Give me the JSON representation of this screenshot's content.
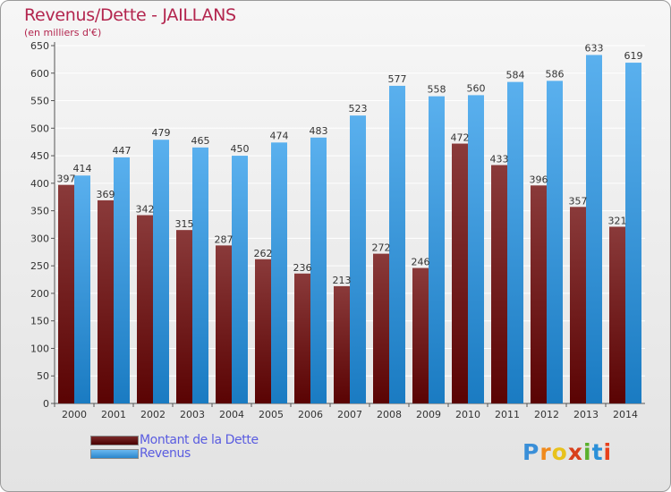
{
  "header": {
    "title": "Revenus/Dette - JAILLANS",
    "subtitle": "(en milliers d'€)"
  },
  "legend": {
    "debt_label": "Montant de la Dette",
    "revenue_label": "Revenus"
  },
  "logo_text": "Proxiti",
  "colors": {
    "title": "#b3254e",
    "debt_dark": "#5a0303",
    "debt_light": "#8a3a3a",
    "revenue_dark": "#1a7bc2",
    "revenue_light": "#5ab0ee",
    "legend_text": "#5a5ce0"
  },
  "chart_data": {
    "type": "bar",
    "categories": [
      "2000",
      "2001",
      "2002",
      "2003",
      "2004",
      "2005",
      "2006",
      "2007",
      "2008",
      "2009",
      "2010",
      "2011",
      "2012",
      "2013",
      "2014"
    ],
    "series": [
      {
        "name": "Montant de la Dette",
        "values": [
          397,
          369,
          342,
          315,
          287,
          262,
          236,
          213,
          272,
          246,
          472,
          433,
          396,
          357,
          321
        ]
      },
      {
        "name": "Revenus",
        "values": [
          414,
          447,
          479,
          465,
          450,
          474,
          483,
          523,
          577,
          558,
          560,
          584,
          586,
          633,
          619
        ]
      }
    ],
    "ylim": [
      0,
      650
    ],
    "yticks": [
      0,
      50,
      100,
      150,
      200,
      250,
      300,
      350,
      400,
      450,
      500,
      550,
      600,
      650
    ],
    "grid": true,
    "legend_position": "bottom-left"
  }
}
